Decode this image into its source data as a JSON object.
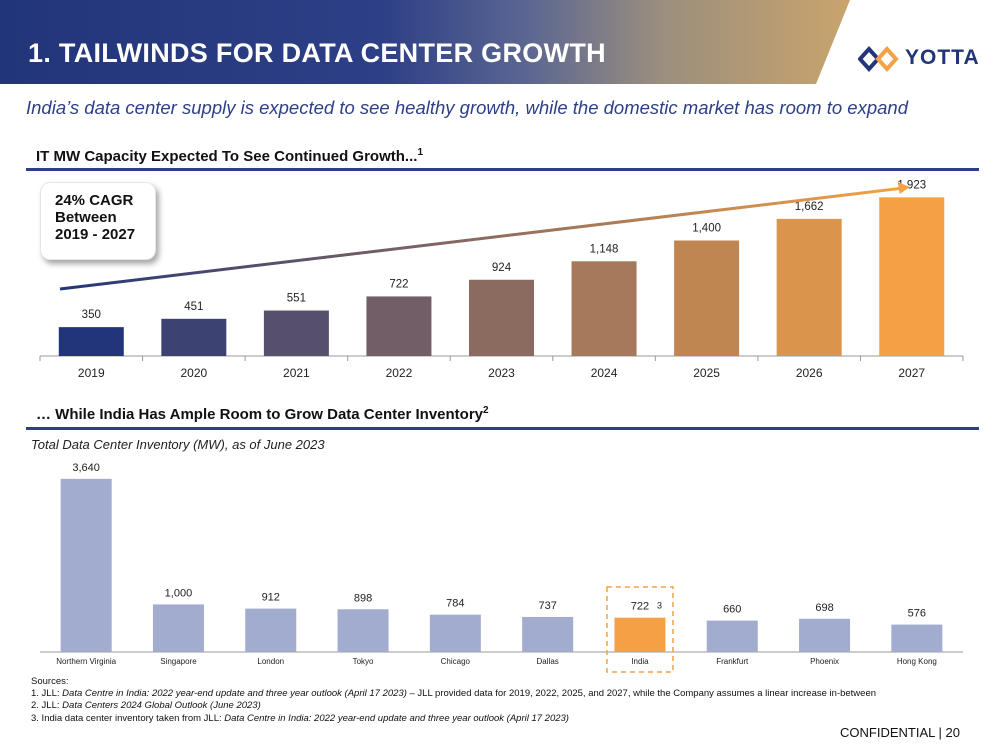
{
  "header": {
    "title": "1. TAILWINDS FOR DATA CENTER GROWTH",
    "logo_text": "YOTTA"
  },
  "subtitle": "India’s data center supply is expected to see healthy growth, while the domestic market has room to expand",
  "colors": {
    "navy": "#2d3f86",
    "orange": "#f4a145",
    "inventory_bar": "#a1acce"
  },
  "chart_data": [
    {
      "type": "bar",
      "title": "IT MW Capacity Expected To See Continued Growth...",
      "title_footnote": "1",
      "annotation": "24% CAGR Between 2019 - 2027",
      "categories": [
        "2019",
        "2020",
        "2021",
        "2022",
        "2023",
        "2024",
        "2025",
        "2026",
        "2027"
      ],
      "values": [
        350,
        451,
        551,
        722,
        924,
        1148,
        1400,
        1662,
        1923
      ],
      "value_labels": [
        "350",
        "451",
        "551",
        "722",
        "924",
        "1,148",
        "1,400",
        "1,662",
        "1,923"
      ],
      "ylim": [
        0,
        2400
      ],
      "trend_arrow": true,
      "color_gradient": [
        "#22357a",
        "#f4a145"
      ]
    },
    {
      "type": "bar",
      "title": "… While India Has Ample Room to Grow Data Center Inventory",
      "title_footnote": "2",
      "subtitle": "Total Data Center Inventory (MW), as of June 2023",
      "categories": [
        "Northern Virginia",
        "Singapore",
        "London",
        "Tokyo",
        "Chicago",
        "Dallas",
        "India",
        "Frankfurt",
        "Phoenix",
        "Hong Kong"
      ],
      "values": [
        3640,
        1000,
        912,
        898,
        784,
        737,
        722,
        660,
        698,
        576
      ],
      "value_labels": [
        "3,640",
        "1,000",
        "912",
        "898",
        "784",
        "737",
        "722",
        "660",
        "698",
        "576"
      ],
      "highlight": "India",
      "highlight_footnote": "3",
      "ylim": [
        0,
        3700
      ]
    }
  ],
  "footnotes": {
    "heading": "Sources:",
    "n1_prefix": "1. JLL: ",
    "n1_italic": "Data Centre in India: 2022 year-end update and three year outlook (April 17 2023)",
    "n1_suffix": " – JLL provided data for 2019, 2022, 2025, and 2027, while the Company assumes a linear increase in-between",
    "n2_prefix": "2. JLL: ",
    "n2_italic": "Data Centers 2024 Global Outlook (June 2023)",
    "n3_prefix": "3. India data center inventory taken from JLL: ",
    "n3_italic": "Data Centre in India: 2022 year-end update and three year outlook (April 17 2023)"
  },
  "confidential": "CONFIDENTIAL | 20"
}
